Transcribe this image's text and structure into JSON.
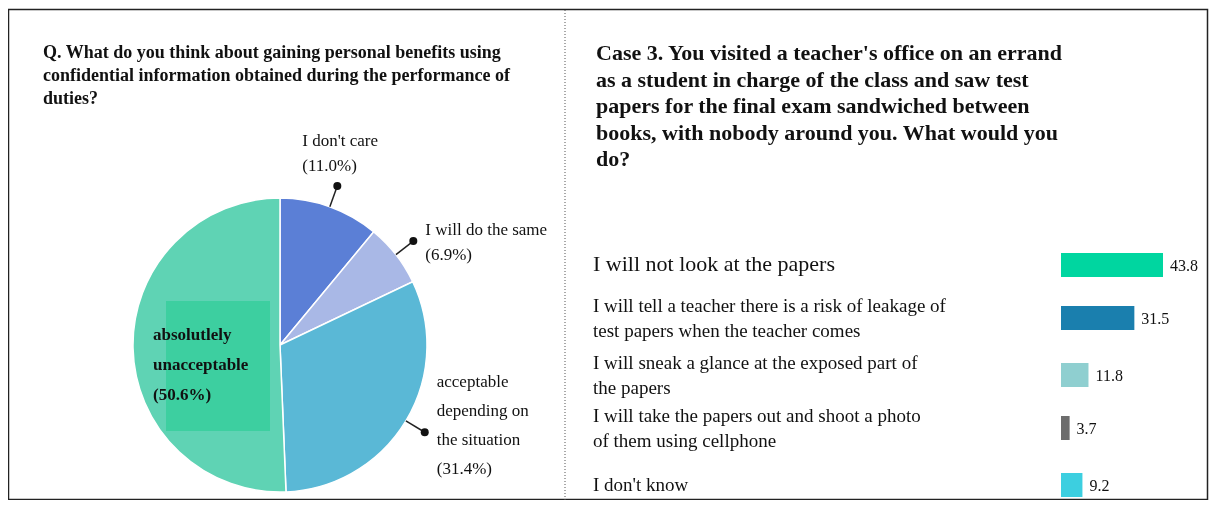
{
  "chart_data": [
    {
      "type": "pie",
      "title": "Q. What do you think about gaining personal benefits using\nconfidential information obtained during the performance of\nduties?",
      "categories": [
        "I don't care",
        "I will do the same",
        "acceptable\ndepending on\nthe situation",
        "absolutlely\nunacceptable"
      ],
      "values": [
        11.0,
        6.9,
        31.4,
        50.6
      ],
      "value_labels": [
        "(11.0%)",
        "(6.9%)",
        "(31.4%)",
        "(50.6%)"
      ],
      "colors": [
        "#5b7fd6",
        "#a9b8e6",
        "#5ab8d6",
        "#5fd3b4"
      ]
    },
    {
      "type": "bar",
      "orientation": "horizontal",
      "title": "Case 3. You  visited a teacher's office on an errand\nas a student in charge of the class and saw test\npapers for the final exam sandwiched between\nbooks, with nobody around you. What would you\ndo?",
      "categories": [
        "I will not look at the papers",
        "I will tell a teacher there is a risk of leakage of\ntest papers when the teacher comes",
        "I will sneak a glance at the exposed part of\nthe papers",
        "I will take the papers out and shoot a photo\nof them using cellphone",
        "I don't know"
      ],
      "values": [
        43.8,
        31.5,
        11.8,
        3.7,
        9.2
      ],
      "colors": [
        "#00d6a0",
        "#1a7fae",
        "#8fcfd0",
        "#6d6d6d",
        "#3ccfe0"
      ],
      "data_labels": true
    }
  ]
}
